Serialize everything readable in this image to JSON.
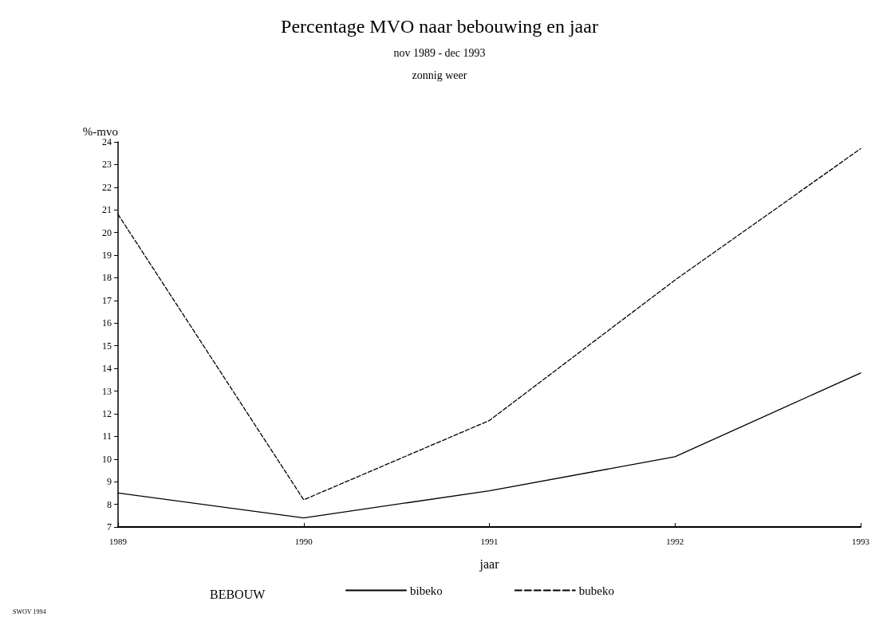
{
  "chart_data": {
    "type": "line",
    "title": "Percentage MVO naar bebouwing en jaar",
    "subtitle": "nov 1989 - dec 1993\n\nzonnig weer",
    "xlabel": "jaar",
    "ylabel": "%-mvo",
    "legend_title": "BEBOUW",
    "categories": [
      "1989",
      "1990",
      "1991",
      "1992",
      "1993"
    ],
    "series": [
      {
        "name": "bibeko",
        "color": "#000000",
        "line_style": "solid",
        "values": [
          8.5,
          7.4,
          8.6,
          10.1,
          13.8
        ]
      },
      {
        "name": "bubeko",
        "color": "#000000",
        "line_style": "dashed",
        "values": [
          20.8,
          8.2,
          11.7,
          17.9,
          23.7
        ]
      }
    ],
    "ylim": [
      7,
      24
    ],
    "yticks": [
      7,
      8,
      9,
      10,
      11,
      12,
      13,
      14,
      15,
      16,
      17,
      18,
      19,
      20,
      21,
      22,
      23,
      24
    ],
    "grid": false,
    "legend": "bottom",
    "marker": "none",
    "annotations": [
      "SWOV 1994"
    ]
  }
}
